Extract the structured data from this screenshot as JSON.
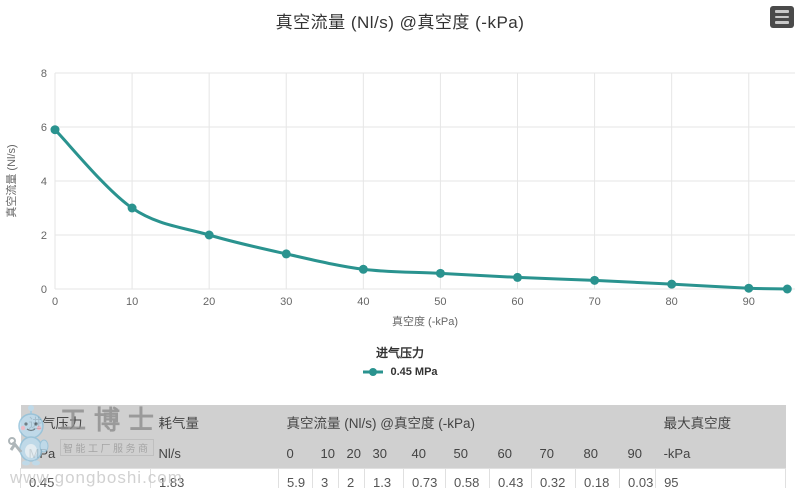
{
  "chart_data": {
    "type": "line",
    "title": "真空流量 (Nl/s) @真空度 (-kPa)",
    "xlabel": "真空度 (-kPa)",
    "ylabel": "真空流量 (Nl/s)",
    "xlim": [
      0,
      96
    ],
    "ylim": [
      0,
      8
    ],
    "x_ticks": [
      0,
      10,
      20,
      30,
      40,
      50,
      60,
      70,
      80,
      90
    ],
    "y_ticks": [
      0,
      2,
      4,
      6,
      8
    ],
    "grid": true,
    "legend_position": "bottom",
    "legend_title": "进气压力",
    "series": [
      {
        "name": "0.45 MPa",
        "color": "#2a938f",
        "x": [
          0,
          10,
          20,
          30,
          40,
          50,
          60,
          70,
          80,
          90,
          95
        ],
        "y": [
          5.9,
          3,
          2,
          1.3,
          0.73,
          0.58,
          0.43,
          0.32,
          0.18,
          0.03,
          0
        ]
      }
    ]
  },
  "context_menu": {
    "icon": "hamburger-menu-icon",
    "bg": "#4a4a4a",
    "stripe": "#c9c9c9"
  },
  "table": {
    "header_groups": [
      {
        "label": "进气压力",
        "colspan": 1
      },
      {
        "label": "耗气量",
        "colspan": 1
      },
      {
        "label": "真空流量 (Nl/s) @真空度 (-kPa)",
        "colspan": 10
      },
      {
        "label": "最大真空度",
        "colspan": 1
      }
    ],
    "subheaders": [
      "MPa",
      "Nl/s",
      "0",
      "10",
      "20",
      "30",
      "40",
      "50",
      "60",
      "70",
      "80",
      "90",
      "-kPa"
    ],
    "rows": [
      [
        "0.45",
        "1.83",
        "5.9",
        "3",
        "2",
        "1.3",
        "0.73",
        "0.58",
        "0.43",
        "0.32",
        "0.18",
        "0.03",
        "95"
      ]
    ]
  },
  "watermark": {
    "brand": "工博士",
    "tagline": "智能工厂服务商",
    "url": "www.gongboshi.com"
  },
  "colors": {
    "accent": "#2a938f",
    "gridline": "#e6e6e6",
    "title_text": "#333333",
    "tick_text": "#666666",
    "table_header_bg": "#d0d0d0"
  }
}
